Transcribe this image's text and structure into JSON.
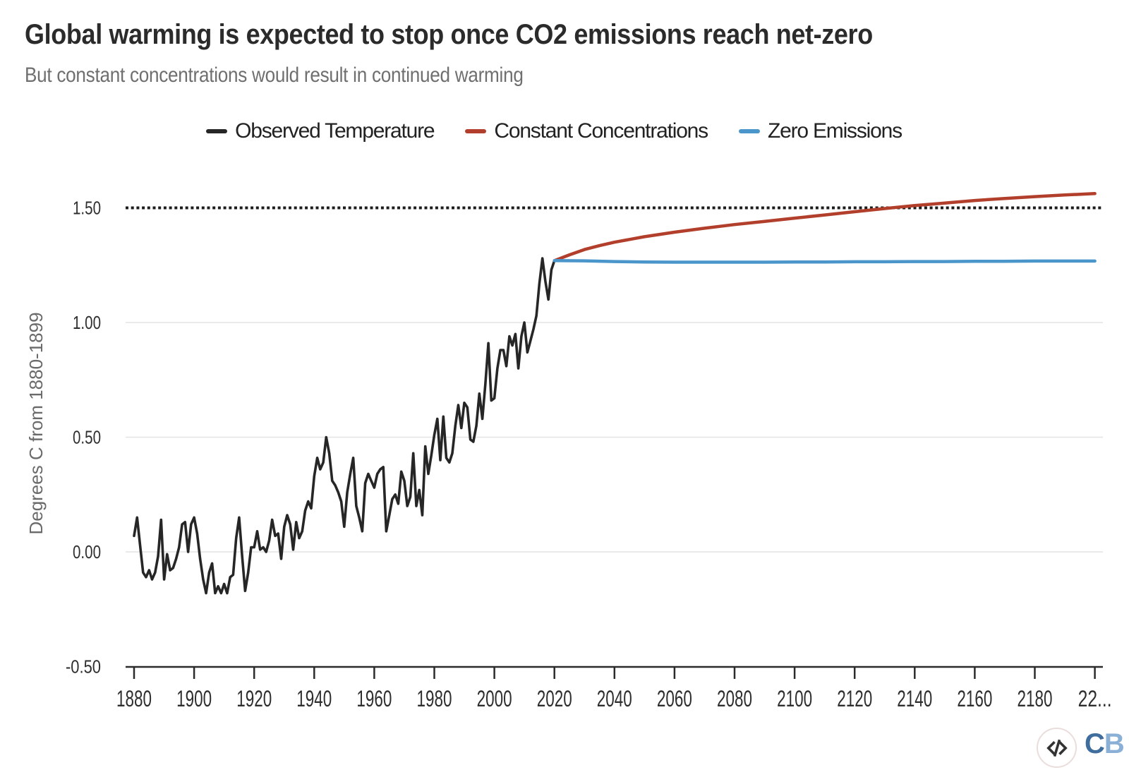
{
  "header": {
    "title": "Global warming is expected to stop once CO2 emissions reach net-zero",
    "subtitle": "But constant concentrations would result in continued warming"
  },
  "legend": {
    "items": [
      {
        "label": "Observed Temperature",
        "color": "#262626"
      },
      {
        "label": "Constant Concentrations",
        "color": "#b23f2b"
      },
      {
        "label": "Zero Emissions",
        "color": "#4a96cb"
      }
    ]
  },
  "chart_data": {
    "type": "line",
    "title": "Global warming is expected to stop once CO2 emissions reach net-zero",
    "subtitle": "But constant concentrations would result in continued warming",
    "xlabel": "",
    "ylabel": "Degrees C from 1880-1899",
    "xlim": [
      1880,
      2200
    ],
    "ylim": [
      -0.5,
      1.6
    ],
    "grid": "horizontal-light",
    "legend_position": "top",
    "x_ticks": [
      {
        "value": 1880,
        "label": "1880"
      },
      {
        "value": 1900,
        "label": "1900"
      },
      {
        "value": 1920,
        "label": "1920"
      },
      {
        "value": 1940,
        "label": "1940"
      },
      {
        "value": 1960,
        "label": "1960"
      },
      {
        "value": 1980,
        "label": "1980"
      },
      {
        "value": 2000,
        "label": "2000"
      },
      {
        "value": 2020,
        "label": "2020"
      },
      {
        "value": 2040,
        "label": "2040"
      },
      {
        "value": 2060,
        "label": "2060"
      },
      {
        "value": 2080,
        "label": "2080"
      },
      {
        "value": 2100,
        "label": "2100"
      },
      {
        "value": 2120,
        "label": "2120"
      },
      {
        "value": 2140,
        "label": "2140"
      },
      {
        "value": 2160,
        "label": "2160"
      },
      {
        "value": 2180,
        "label": "2180"
      },
      {
        "value": 2200,
        "label": "22..."
      }
    ],
    "y_ticks": [
      {
        "value": 1.5,
        "label": "1.50"
      },
      {
        "value": 1.0,
        "label": "1.00"
      },
      {
        "value": 0.5,
        "label": "0.50"
      },
      {
        "value": 0.0,
        "label": "0.00"
      },
      {
        "value": -0.5,
        "label": "-0.50"
      }
    ],
    "grid_values": [
      1.0,
      0.5,
      0.0
    ],
    "threshold": {
      "value": 1.5,
      "style": "dotted",
      "color": "#1c1c1c"
    },
    "series": [
      {
        "name": "Observed Temperature",
        "color": "#262626",
        "width": 3.6,
        "x_start": 1880,
        "x_step": 1,
        "y": [
          0.07,
          0.15,
          0.03,
          -0.09,
          -0.11,
          -0.08,
          -0.12,
          -0.09,
          -0.02,
          0.14,
          -0.12,
          -0.01,
          -0.08,
          -0.07,
          -0.03,
          0.02,
          0.12,
          0.13,
          0.0,
          0.12,
          0.15,
          0.08,
          -0.03,
          -0.12,
          -0.18,
          -0.09,
          -0.05,
          -0.18,
          -0.15,
          -0.18,
          -0.14,
          -0.18,
          -0.11,
          -0.1,
          0.06,
          0.15,
          -0.02,
          -0.17,
          -0.09,
          0.02,
          0.02,
          0.09,
          0.01,
          0.02,
          0.0,
          0.05,
          0.14,
          0.07,
          0.08,
          -0.03,
          0.11,
          0.16,
          0.12,
          0.01,
          0.13,
          0.06,
          0.09,
          0.18,
          0.22,
          0.19,
          0.33,
          0.41,
          0.36,
          0.39,
          0.5,
          0.43,
          0.31,
          0.29,
          0.26,
          0.22,
          0.11,
          0.26,
          0.34,
          0.41,
          0.2,
          0.15,
          0.09,
          0.3,
          0.34,
          0.31,
          0.28,
          0.34,
          0.36,
          0.37,
          0.09,
          0.16,
          0.23,
          0.25,
          0.21,
          0.35,
          0.31,
          0.2,
          0.24,
          0.43,
          0.2,
          0.27,
          0.16,
          0.46,
          0.34,
          0.42,
          0.51,
          0.58,
          0.4,
          0.59,
          0.41,
          0.39,
          0.43,
          0.55,
          0.64,
          0.54,
          0.65,
          0.63,
          0.49,
          0.48,
          0.55,
          0.69,
          0.58,
          0.73,
          0.91,
          0.66,
          0.67,
          0.8,
          0.88,
          0.88,
          0.81,
          0.94,
          0.9,
          0.95,
          0.8,
          0.94,
          1.0,
          0.87,
          0.92,
          0.97,
          1.03,
          1.17,
          1.28,
          1.18,
          1.1,
          1.23,
          1.27
        ]
      },
      {
        "name": "Constant Concentrations",
        "color": "#b23f2b",
        "width": 4.5,
        "x": [
          2020,
          2025,
          2030,
          2035,
          2040,
          2050,
          2060,
          2070,
          2080,
          2090,
          2100,
          2110,
          2120,
          2130,
          2140,
          2150,
          2160,
          2170,
          2180,
          2190,
          2200
        ],
        "y": [
          1.27,
          1.295,
          1.318,
          1.335,
          1.35,
          1.374,
          1.394,
          1.411,
          1.427,
          1.441,
          1.455,
          1.469,
          1.483,
          1.497,
          1.51,
          1.521,
          1.532,
          1.541,
          1.549,
          1.556,
          1.562
        ]
      },
      {
        "name": "Zero Emissions",
        "color": "#4a96cb",
        "width": 4.5,
        "x": [
          2020,
          2030,
          2040,
          2050,
          2060,
          2070,
          2080,
          2090,
          2100,
          2110,
          2120,
          2130,
          2140,
          2150,
          2160,
          2170,
          2180,
          2190,
          2200
        ],
        "y": [
          1.27,
          1.269,
          1.266,
          1.264,
          1.263,
          1.263,
          1.263,
          1.263,
          1.264,
          1.264,
          1.265,
          1.265,
          1.266,
          1.266,
          1.267,
          1.267,
          1.268,
          1.268,
          1.268
        ]
      }
    ]
  },
  "footer": {
    "embed_icon": "code-embed-icon",
    "logo": {
      "c": "C",
      "b": "B",
      "c_color": "#3e6d9e",
      "b_color": "#8ab0d6"
    }
  }
}
